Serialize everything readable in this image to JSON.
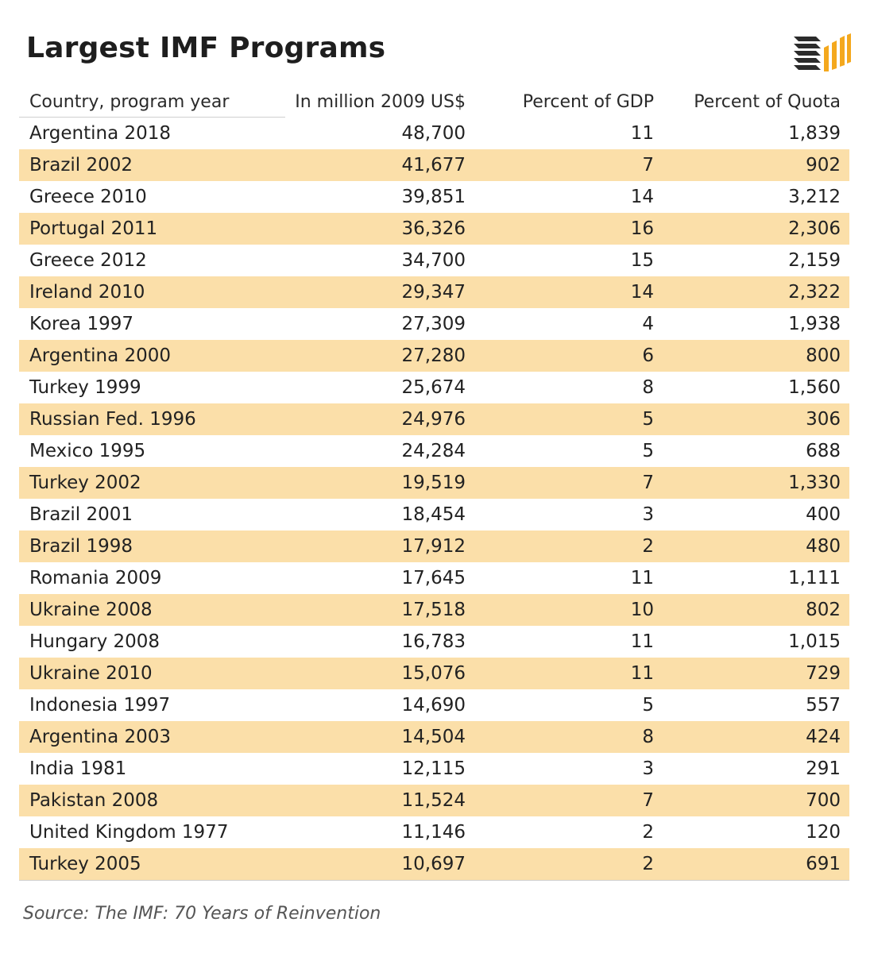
{
  "title": "Largest IMF Programs",
  "logo": {
    "icon": "stacked-bars-logo-icon",
    "dark_color": "#2b2b2b",
    "accent_color": "#f4a81d"
  },
  "colors": {
    "stripe": "#fbdfa9",
    "text": "#222222",
    "rule": "#cfcfcf"
  },
  "chart_data": {
    "type": "table",
    "columns": [
      "Country, program year",
      "In million 2009 US$",
      "Percent of GDP",
      "Percent of Quota"
    ],
    "rows": [
      [
        "Argentina 2018",
        "48,700",
        "11",
        "1,839"
      ],
      [
        "Brazil 2002",
        "41,677",
        "7",
        "902"
      ],
      [
        "Greece 2010",
        "39,851",
        "14",
        "3,212"
      ],
      [
        "Portugal 2011",
        "36,326",
        "16",
        "2,306"
      ],
      [
        "Greece 2012",
        "34,700",
        "15",
        "2,159"
      ],
      [
        "Ireland 2010",
        "29,347",
        "14",
        "2,322"
      ],
      [
        "Korea 1997",
        "27,309",
        "4",
        "1,938"
      ],
      [
        "Argentina 2000",
        "27,280",
        "6",
        "800"
      ],
      [
        "Turkey 1999",
        "25,674",
        "8",
        "1,560"
      ],
      [
        "Russian Fed. 1996",
        "24,976",
        "5",
        "306"
      ],
      [
        "Mexico 1995",
        "24,284",
        "5",
        "688"
      ],
      [
        "Turkey 2002",
        "19,519",
        "7",
        "1,330"
      ],
      [
        "Brazil 2001",
        "18,454",
        "3",
        "400"
      ],
      [
        "Brazil 1998",
        "17,912",
        "2",
        "480"
      ],
      [
        "Romania 2009",
        "17,645",
        "11",
        "1,111"
      ],
      [
        "Ukraine 2008",
        "17,518",
        "10",
        "802"
      ],
      [
        "Hungary 2008",
        "16,783",
        "11",
        "1,015"
      ],
      [
        "Ukraine 2010",
        "15,076",
        "11",
        "729"
      ],
      [
        "Indonesia 1997",
        "14,690",
        "5",
        "557"
      ],
      [
        "Argentina 2003",
        "14,504",
        "8",
        "424"
      ],
      [
        "India 1981",
        "12,115",
        "3",
        "291"
      ],
      [
        "Pakistan 2008",
        "11,524",
        "7",
        "700"
      ],
      [
        "United Kingdom 1977",
        "11,146",
        "2",
        "120"
      ],
      [
        "Turkey 2005",
        "10,697",
        "2",
        "691"
      ]
    ]
  },
  "source": "Source: The IMF: 70 Years of Reinvention"
}
